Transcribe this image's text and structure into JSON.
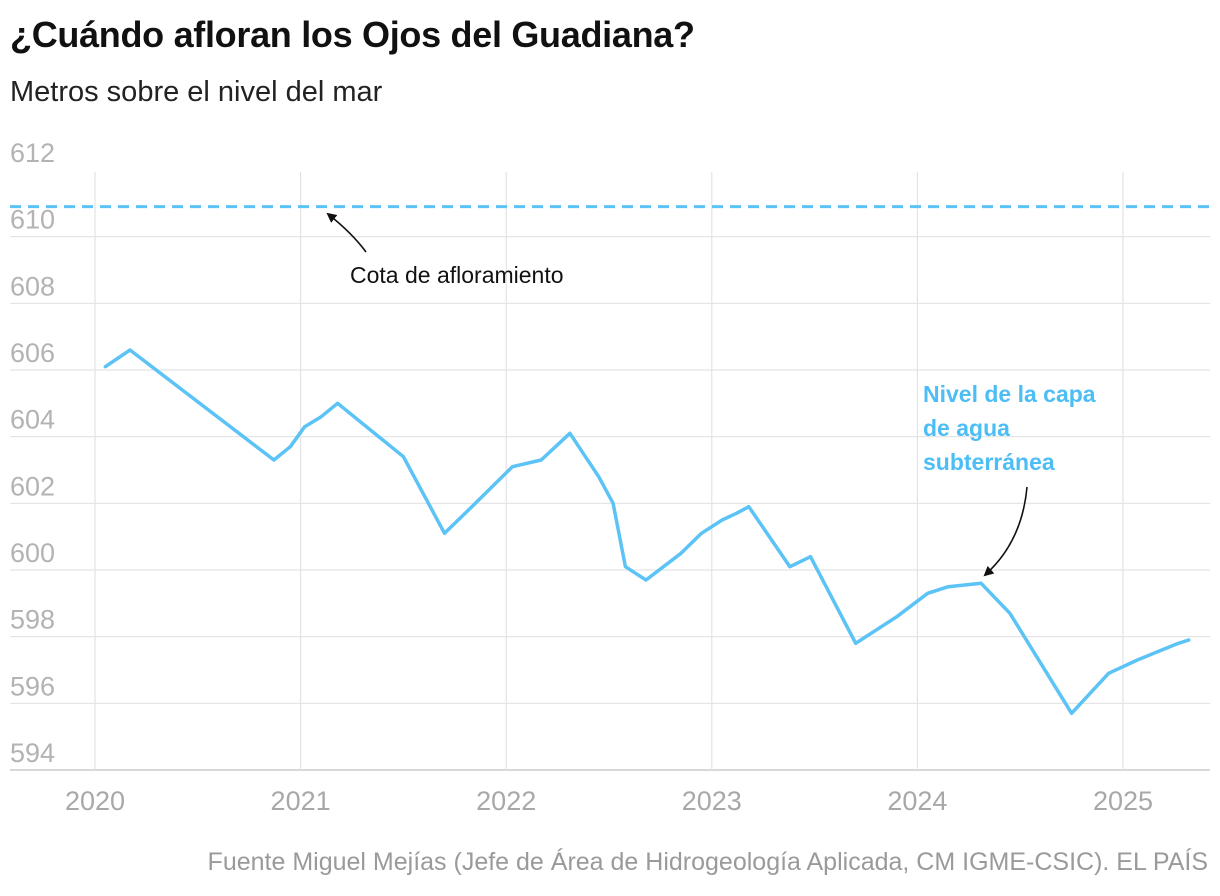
{
  "header": {
    "title": "¿Cuándo afloran los Ojos del Guadiana?",
    "subtitle": "Metros sobre el nivel del mar"
  },
  "footer": {
    "source": "Fuente Miguel Mejías (Jefe de Área de Hidrogeología Aplicada, CM IGME-CSIC). EL PAÍS"
  },
  "colors": {
    "series": "#5bc3f5",
    "grid": "#e3e3e3",
    "axis": "#cccccc",
    "arrow": "#111111"
  },
  "chart_data": {
    "type": "line",
    "title": "¿Cuándo afloran los Ojos del Guadiana?",
    "subtitle": "Metros sobre el nivel del mar",
    "xlabel": "",
    "ylabel": "Metros sobre el nivel del mar",
    "grid": true,
    "ylim": [
      593.5,
      612
    ],
    "xlim": [
      2019.95,
      2025.45
    ],
    "y_ticks": [
      594,
      596,
      598,
      600,
      602,
      604,
      606,
      608,
      610,
      612
    ],
    "x_ticks": [
      2020,
      2021,
      2022,
      2023,
      2024,
      2025
    ],
    "reference_line": {
      "name": "Cota de afloramiento",
      "value": 610.9,
      "style": "dashed"
    },
    "series": [
      {
        "name": "Nivel de la capa de agua subterránea",
        "x": [
          2020.05,
          2020.17,
          2020.87,
          2020.95,
          2021.02,
          2021.1,
          2021.18,
          2021.5,
          2021.7,
          2021.85,
          2022.03,
          2022.17,
          2022.31,
          2022.45,
          2022.52,
          2022.58,
          2022.68,
          2022.85,
          2022.95,
          2023.05,
          2023.12,
          2023.18,
          2023.38,
          2023.48,
          2023.7,
          2023.9,
          2024.05,
          2024.15,
          2024.31,
          2024.45,
          2024.75,
          2024.93,
          2025.07,
          2025.15,
          2025.27,
          2025.32
        ],
        "values": [
          606.1,
          606.6,
          603.3,
          603.7,
          604.3,
          604.6,
          605.0,
          603.4,
          601.1,
          602.0,
          603.1,
          603.3,
          604.1,
          602.8,
          602.0,
          600.1,
          599.7,
          600.5,
          601.1,
          601.5,
          601.7,
          601.9,
          600.1,
          600.4,
          597.8,
          598.6,
          599.3,
          599.5,
          599.6,
          598.7,
          595.7,
          596.9,
          597.3,
          597.5,
          597.8,
          597.9
        ]
      }
    ],
    "annotations": [
      {
        "label": "Cota de afloramiento",
        "target": "reference_line"
      },
      {
        "lines": [
          "Nivel de la capa",
          "de agua",
          "subterránea"
        ],
        "target": "series"
      }
    ]
  }
}
